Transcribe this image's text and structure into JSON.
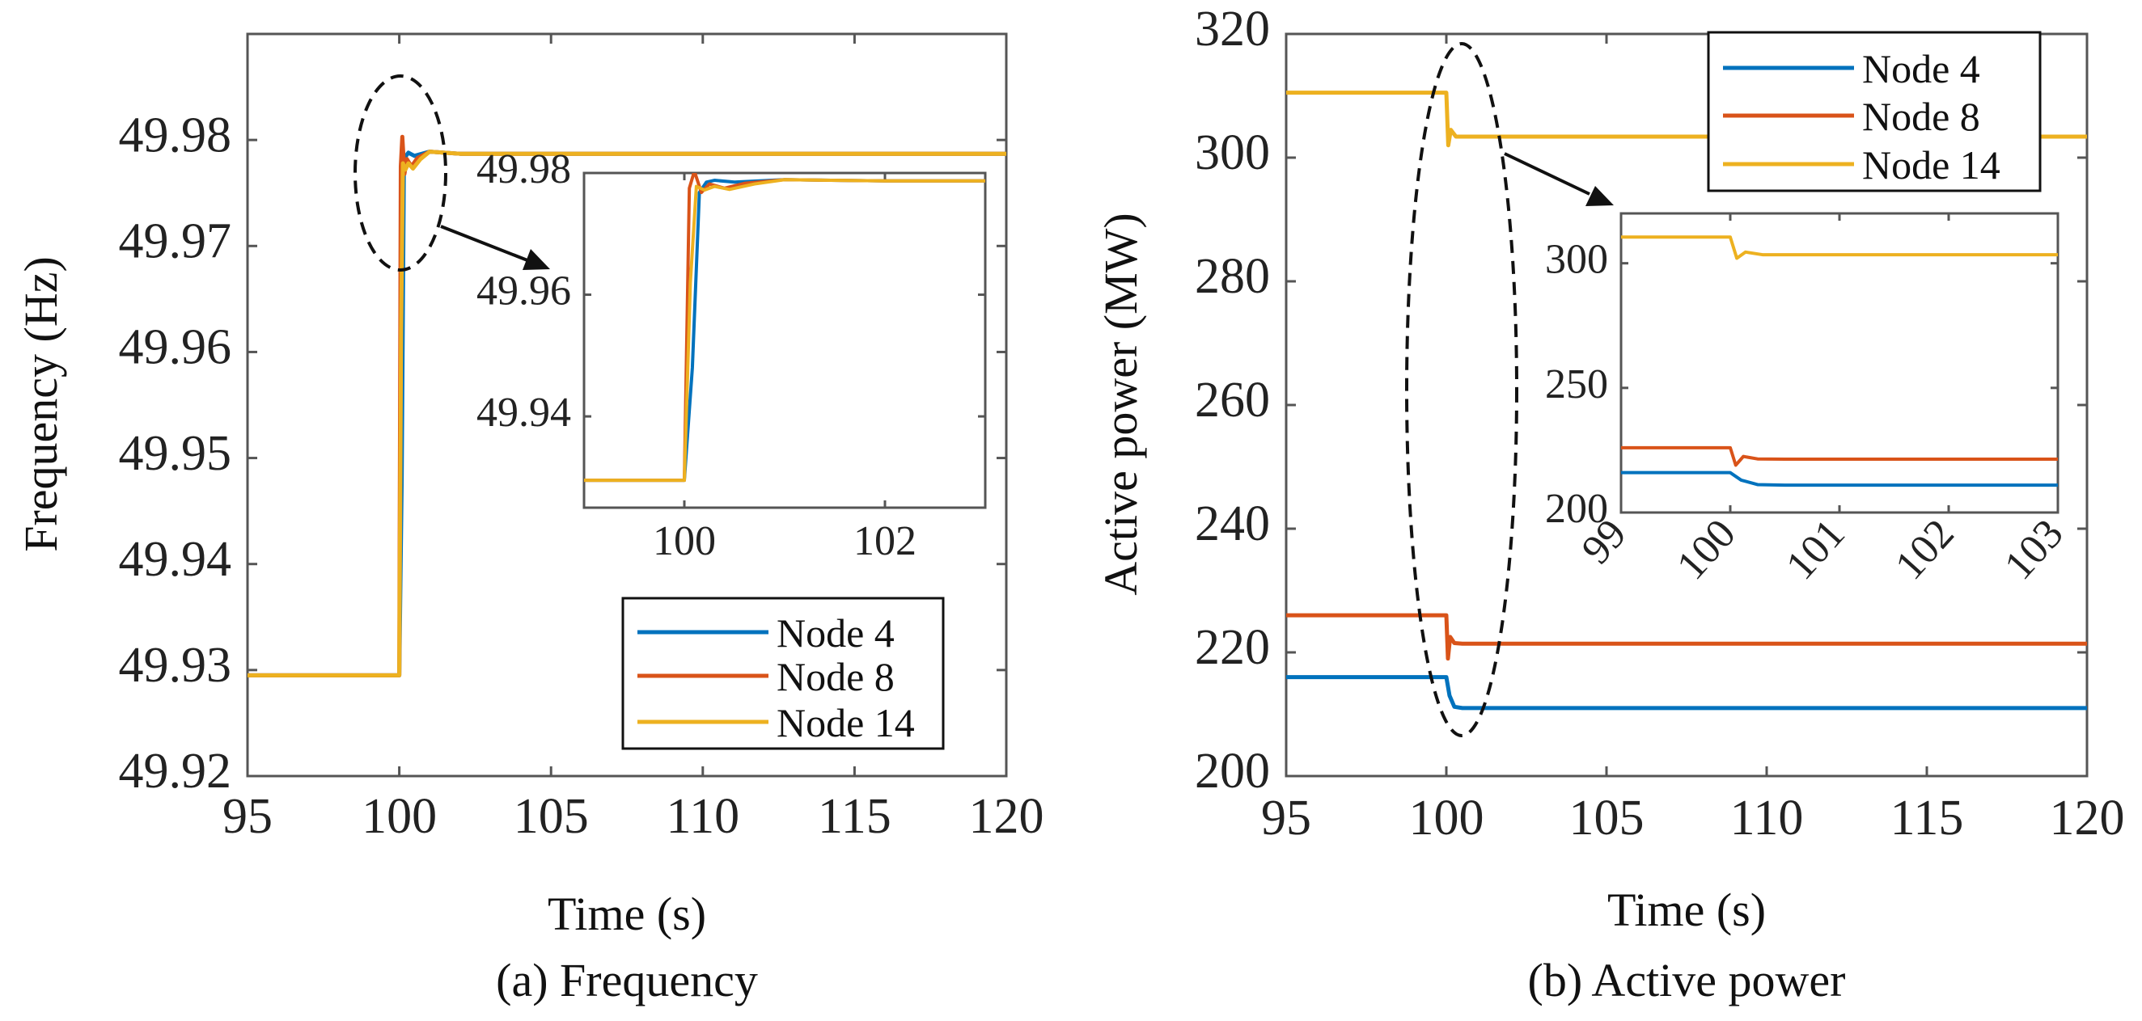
{
  "chart_data": [
    {
      "id": "a",
      "type": "line",
      "caption": "(a) Frequency",
      "xlabel": "Time (s)",
      "ylabel": "Frequency (Hz)",
      "xlim": [
        95,
        120
      ],
      "ylim": [
        49.92,
        49.99
      ],
      "xticks": [
        95,
        100,
        105,
        110,
        115,
        120
      ],
      "xtick_labels": [
        "95",
        "100",
        "105",
        "110",
        "115",
        "120"
      ],
      "yticks": [
        49.92,
        49.93,
        49.94,
        49.95,
        49.96,
        49.97,
        49.98
      ],
      "ytick_labels": [
        "49.92",
        "49.93",
        "49.94",
        "49.95",
        "49.96",
        "49.97",
        "49.98"
      ],
      "legend": [
        "Node 4",
        "Node 8",
        "Node 14"
      ],
      "series": [
        {
          "name": "Node 4",
          "color": "#0072BD",
          "x": [
            95,
            100.0,
            100.08,
            100.15,
            100.22,
            100.3,
            100.5,
            101,
            102,
            120
          ],
          "y": [
            49.9295,
            49.9295,
            49.948,
            49.9768,
            49.9785,
            49.9788,
            49.9785,
            49.9789,
            49.9787,
            49.9787
          ]
        },
        {
          "name": "Node 8",
          "color": "#D95319",
          "x": [
            95,
            100.0,
            100.05,
            100.1,
            100.17,
            100.25,
            100.4,
            100.6,
            101,
            102,
            120
          ],
          "y": [
            49.9295,
            49.9295,
            49.9775,
            49.9803,
            49.9768,
            49.9782,
            49.9775,
            49.9783,
            49.9789,
            49.9787,
            49.9787
          ]
        },
        {
          "name": "Node 14",
          "color": "#EDB120",
          "x": [
            95,
            100.0,
            100.06,
            100.12,
            100.2,
            100.3,
            100.45,
            100.7,
            101,
            102,
            120
          ],
          "y": [
            49.9295,
            49.9295,
            49.962,
            49.9778,
            49.9772,
            49.9778,
            49.9773,
            49.9782,
            49.9789,
            49.9787,
            49.9787
          ]
        }
      ],
      "inset": {
        "xlim": [
          99,
          103
        ],
        "ylim": [
          49.925,
          49.98
        ],
        "xticks": [
          100,
          102
        ],
        "xtick_labels": [
          "100",
          "102"
        ],
        "yticks": [
          49.94,
          49.96,
          49.98
        ],
        "ytick_labels": [
          "49.94",
          "49.96",
          "49.98"
        ]
      }
    },
    {
      "id": "b",
      "type": "line",
      "caption": "(b) Active power",
      "xlabel": "Time (s)",
      "ylabel": "Active power (MW)",
      "xlim": [
        95,
        120
      ],
      "ylim": [
        200,
        320
      ],
      "xticks": [
        95,
        100,
        105,
        110,
        115,
        120
      ],
      "xtick_labels": [
        "95",
        "100",
        "105",
        "110",
        "115",
        "120"
      ],
      "yticks": [
        200,
        220,
        240,
        260,
        280,
        300,
        320
      ],
      "ytick_labels": [
        "200",
        "220",
        "240",
        "260",
        "280",
        "300",
        "320"
      ],
      "legend": [
        "Node 4",
        "Node 8",
        "Node 14"
      ],
      "series": [
        {
          "name": "Node 4",
          "color": "#0072BD",
          "x": [
            95,
            100.0,
            100.1,
            100.25,
            100.5,
            120
          ],
          "y": [
            216,
            216,
            213,
            211.2,
            211,
            211
          ]
        },
        {
          "name": "Node 8",
          "color": "#D95319",
          "x": [
            95,
            100.0,
            100.05,
            100.12,
            100.25,
            100.5,
            120
          ],
          "y": [
            226,
            226,
            219,
            222.5,
            221.5,
            221.4,
            221.4
          ]
        },
        {
          "name": "Node 14",
          "color": "#EDB120",
          "x": [
            95,
            100.0,
            100.06,
            100.14,
            100.3,
            100.6,
            120
          ],
          "y": [
            310.5,
            310.5,
            302,
            304.5,
            303.4,
            303.4,
            303.4
          ]
        }
      ],
      "inset": {
        "xlim": [
          99,
          103
        ],
        "ylim": [
          200,
          320
        ],
        "xticks": [
          99,
          100,
          101,
          102,
          103
        ],
        "xtick_labels": [
          "99",
          "100",
          "101",
          "102",
          "103"
        ],
        "yticks": [
          200,
          250,
          300
        ],
        "ytick_labels": [
          "200",
          "250",
          "300"
        ]
      }
    }
  ]
}
